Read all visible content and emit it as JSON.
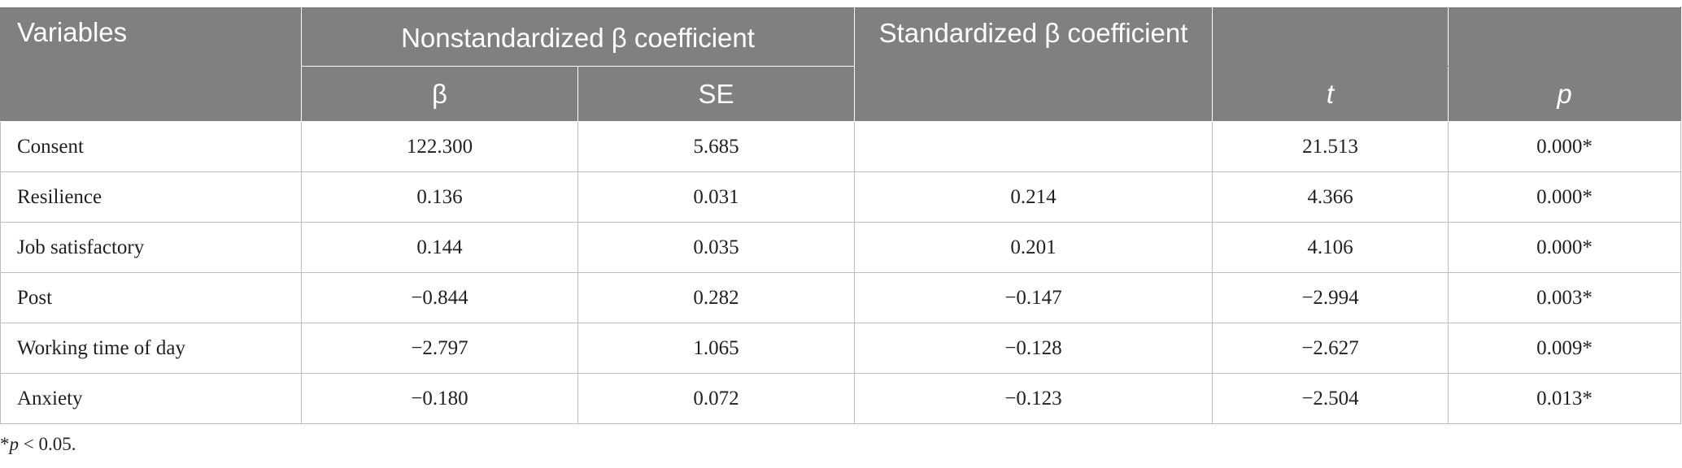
{
  "table": {
    "header": {
      "variables": "Variables",
      "nonstandardized": "Nonstandardized β coefficient",
      "standardized": "Standardized β coefficient",
      "beta": "β",
      "se": "SE",
      "t": "t",
      "p": "p"
    },
    "rows": [
      {
        "variable": "Consent",
        "beta": "122.300",
        "se": "5.685",
        "std_beta": "",
        "t": "21.513",
        "p": "0.000*"
      },
      {
        "variable": "Resilience",
        "beta": "0.136",
        "se": "0.031",
        "std_beta": "0.214",
        "t": "4.366",
        "p": "0.000*"
      },
      {
        "variable": "Job satisfactory",
        "beta": "0.144",
        "se": "0.035",
        "std_beta": "0.201",
        "t": "4.106",
        "p": "0.000*"
      },
      {
        "variable": "Post",
        "beta": "−0.844",
        "se": "0.282",
        "std_beta": "−0.147",
        "t": "−2.994",
        "p": "0.003*"
      },
      {
        "variable": "Working time of day",
        "beta": "−2.797",
        "se": "1.065",
        "std_beta": "−0.128",
        "t": "−2.627",
        "p": "0.009*"
      },
      {
        "variable": "Anxiety",
        "beta": "−0.180",
        "se": "0.072",
        "std_beta": "−0.123",
        "t": "−2.504",
        "p": "0.013*"
      }
    ]
  },
  "footnote": {
    "star": "*",
    "p": "p",
    "rest": " < 0.05."
  }
}
